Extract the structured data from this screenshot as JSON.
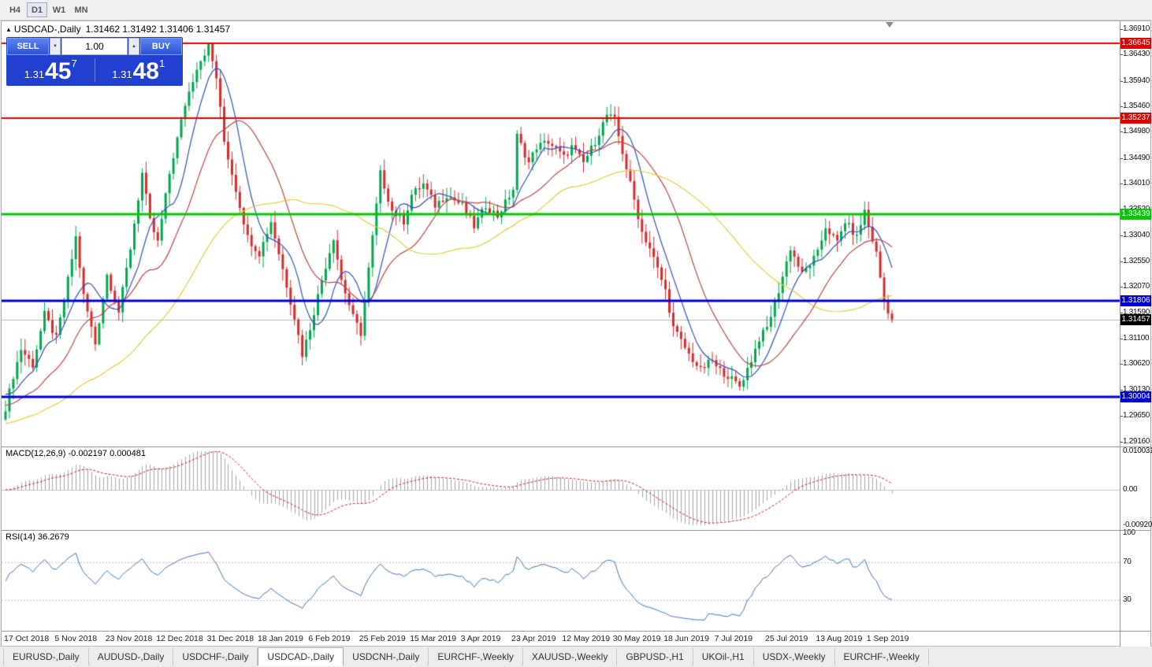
{
  "toolbar": {
    "timeframes": [
      {
        "label": "H4",
        "active": false
      },
      {
        "label": "D1",
        "active": true
      },
      {
        "label": "W1",
        "active": false
      },
      {
        "label": "MN",
        "active": false
      }
    ]
  },
  "chart": {
    "window_icon": "▲",
    "symbol": "USDCAD-,Daily",
    "ohlc": "1.31462 1.31492 1.31406 1.31457"
  },
  "trade_panel": {
    "sell_label": "SELL",
    "buy_label": "BUY",
    "volume": "1.00",
    "spin_down_icon": "▼",
    "spin_up_icon": "▲",
    "sell_price_main": "1.31",
    "sell_price_big": "45",
    "sell_price_sup": "7",
    "buy_price_main": "1.31",
    "buy_price_big": "48",
    "buy_price_sup": "1"
  },
  "price_scale": {
    "ticks": [
      "1.36910",
      "1.36430",
      "1.35940",
      "1.35460",
      "1.34980",
      "1.34490",
      "1.34010",
      "1.33520",
      "1.33040",
      "1.32550",
      "1.32070",
      "1.31590",
      "1.31100",
      "1.30620",
      "1.30130",
      "1.29650",
      "1.29160"
    ]
  },
  "levels": [
    {
      "price": 1.36645,
      "label": "1.36645",
      "color": "#e00000",
      "width": 2
    },
    {
      "price": 1.35237,
      "label": "1.35237",
      "color": "#e00000",
      "width": 2
    },
    {
      "price": 1.33439,
      "label": "1.33439",
      "color": "#00c800",
      "width": 3
    },
    {
      "price": 1.31806,
      "label": "1.31806",
      "color": "#0000d0",
      "width": 3
    },
    {
      "price": 1.30004,
      "label": "1.30004",
      "color": "#0000d0",
      "width": 3
    }
  ],
  "current_price": {
    "value": 1.31457,
    "label": "1.31457",
    "color": "#000000",
    "line_color": "#b8b8b8"
  },
  "macd_panel": {
    "label": "MACD(12,26,9)",
    "values": "-0.002197 0.000481",
    "scale": [
      "0.010031",
      "0.00",
      "-0.009203"
    ],
    "range": [
      -0.009203,
      0.010031
    ],
    "hist_color": "#a6a6a6",
    "signal_color": "#cc2222",
    "zero_color": "#c8c8c8"
  },
  "rsi_panel": {
    "label": "RSI(14)",
    "value": "36.2679",
    "scale": [
      "100",
      "70",
      "30"
    ],
    "levels": [
      70,
      30
    ],
    "color": "#3f78c0",
    "level_color": "#c0c0c0"
  },
  "date_axis": [
    "17 Oct 2018",
    "5 Nov 2018",
    "23 Nov 2018",
    "12 Dec 2018",
    "31 Dec 2018",
    "18 Jan 2019",
    "6 Feb 2019",
    "25 Feb 2019",
    "15 Mar 2019",
    "3 Apr 2019",
    "23 Apr 2019",
    "12 May 2019",
    "30 May 2019",
    "18 Jun 2019",
    "7 Jul 2019",
    "25 Jul 2019",
    "13 Aug 2019",
    "1 Sep 2019"
  ],
  "tabs": [
    {
      "label": "EURUSD-,Daily",
      "active": false
    },
    {
      "label": "AUDUSD-,Daily",
      "active": false
    },
    {
      "label": "USDCHF-,Daily",
      "active": false
    },
    {
      "label": "USDCAD-,Daily",
      "active": true
    },
    {
      "label": "USDCNH-,Daily",
      "active": false
    },
    {
      "label": "EURCHF-,Weekly",
      "active": false
    },
    {
      "label": "XAUUSD-,Weekly",
      "active": false
    },
    {
      "label": "GBPUSD-,H1",
      "active": false
    },
    {
      "label": "UKOil-,H1",
      "active": false
    },
    {
      "label": "USDX-,Weekly",
      "active": false
    },
    {
      "label": "EURCHF-,Weekly",
      "active": false
    }
  ],
  "chart_data": {
    "type": "candlestick",
    "symbol": "USDCAD",
    "timeframe": "Daily",
    "candle_count": 228,
    "price_min": 1.2916,
    "price_max": 1.3691,
    "up_color": "#00a64f",
    "down_color": "#d52b2b",
    "close_anchors": [
      [
        0,
        1.298
      ],
      [
        2,
        1.304
      ],
      [
        4,
        1.309
      ],
      [
        7,
        1.306
      ],
      [
        10,
        1.3155
      ],
      [
        13,
        1.311
      ],
      [
        15,
        1.318
      ],
      [
        18,
        1.33
      ],
      [
        20,
        1.319
      ],
      [
        23,
        1.31
      ],
      [
        26,
        1.323
      ],
      [
        29,
        1.316
      ],
      [
        32,
        1.328
      ],
      [
        35,
        1.342
      ],
      [
        37,
        1.333
      ],
      [
        39,
        1.329
      ],
      [
        42,
        1.342
      ],
      [
        46,
        1.355
      ],
      [
        49,
        1.362
      ],
      [
        52,
        1.366
      ],
      [
        54,
        1.36
      ],
      [
        56,
        1.348
      ],
      [
        59,
        1.339
      ],
      [
        62,
        1.33
      ],
      [
        65,
        1.327
      ],
      [
        68,
        1.333
      ],
      [
        71,
        1.324
      ],
      [
        74,
        1.315
      ],
      [
        76,
        1.308
      ],
      [
        78,
        1.313
      ],
      [
        81,
        1.322
      ],
      [
        84,
        1.33
      ],
      [
        86,
        1.322
      ],
      [
        89,
        1.315
      ],
      [
        91,
        1.312
      ],
      [
        94,
        1.33
      ],
      [
        96,
        1.342
      ],
      [
        99,
        1.335
      ],
      [
        102,
        1.333
      ],
      [
        104,
        1.338
      ],
      [
        107,
        1.34
      ],
      [
        110,
        1.336
      ],
      [
        113,
        1.338
      ],
      [
        117,
        1.336
      ],
      [
        120,
        1.332
      ],
      [
        123,
        1.336
      ],
      [
        126,
        1.334
      ],
      [
        130,
        1.339
      ],
      [
        131,
        1.349
      ],
      [
        134,
        1.344
      ],
      [
        136,
        1.347
      ],
      [
        139,
        1.348
      ],
      [
        143,
        1.345
      ],
      [
        145,
        1.347
      ],
      [
        148,
        1.344
      ],
      [
        151,
        1.348
      ],
      [
        154,
        1.353
      ],
      [
        156,
        1.352
      ],
      [
        158,
        1.346
      ],
      [
        160,
        1.34
      ],
      [
        163,
        1.331
      ],
      [
        165,
        1.328
      ],
      [
        169,
        1.32
      ],
      [
        171,
        1.313
      ],
      [
        175,
        1.308
      ],
      [
        178,
        1.305
      ],
      [
        181,
        1.307
      ],
      [
        182,
        1.3055
      ],
      [
        185,
        1.304
      ],
      [
        188,
        1.302
      ],
      [
        191,
        1.307
      ],
      [
        193,
        1.311
      ],
      [
        195,
        1.313
      ],
      [
        198,
        1.32
      ],
      [
        201,
        1.328
      ],
      [
        204,
        1.323
      ],
      [
        208,
        1.327
      ],
      [
        210,
        1.332
      ],
      [
        213,
        1.329
      ],
      [
        215,
        1.333
      ],
      [
        218,
        1.33
      ],
      [
        220,
        1.335
      ],
      [
        221,
        1.332
      ],
      [
        223,
        1.327
      ],
      [
        225,
        1.318
      ],
      [
        227,
        1.31457
      ]
    ],
    "moving_averages": [
      {
        "period": 8,
        "color": "#2f4fc0",
        "seed": 1.301
      },
      {
        "period": 20,
        "color": "#c04545",
        "seed": 1.2985
      },
      {
        "period": 50,
        "color": "#e2cf3c",
        "seed": 1.295
      }
    ],
    "macd": {
      "fast": 12,
      "slow": 26,
      "signal": 9
    },
    "rsi": {
      "period": 14
    }
  }
}
